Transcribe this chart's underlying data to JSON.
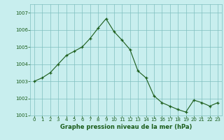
{
  "x": [
    0,
    1,
    2,
    3,
    4,
    5,
    6,
    7,
    8,
    9,
    10,
    11,
    12,
    13,
    14,
    15,
    16,
    17,
    18,
    19,
    20,
    21,
    22,
    23
  ],
  "y": [
    1003.0,
    1003.2,
    1003.5,
    1004.0,
    1004.5,
    1004.75,
    1005.0,
    1005.5,
    1006.1,
    1006.65,
    1005.9,
    1005.4,
    1004.85,
    1003.6,
    1003.2,
    1002.15,
    1001.75,
    1001.55,
    1001.35,
    1001.2,
    1001.9,
    1001.75,
    1001.55,
    1001.75
  ],
  "line_color": "#1a5c1a",
  "marker_color": "#1a5c1a",
  "bg_color": "#c8eeee",
  "grid_color": "#7fbfbf",
  "xlabel": "Graphe pression niveau de la mer (hPa)",
  "xlabel_color": "#1a5c1a",
  "tick_color": "#1a5c1a",
  "ylim": [
    1001.0,
    1007.5
  ],
  "xlim": [
    -0.5,
    23.5
  ],
  "yticks": [
    1001,
    1002,
    1003,
    1004,
    1005,
    1006,
    1007
  ],
  "xticks": [
    0,
    1,
    2,
    3,
    4,
    5,
    6,
    7,
    8,
    9,
    10,
    11,
    12,
    13,
    14,
    15,
    16,
    17,
    18,
    19,
    20,
    21,
    22,
    23
  ],
  "tick_fontsize": 5.0,
  "xlabel_fontsize": 6.0
}
